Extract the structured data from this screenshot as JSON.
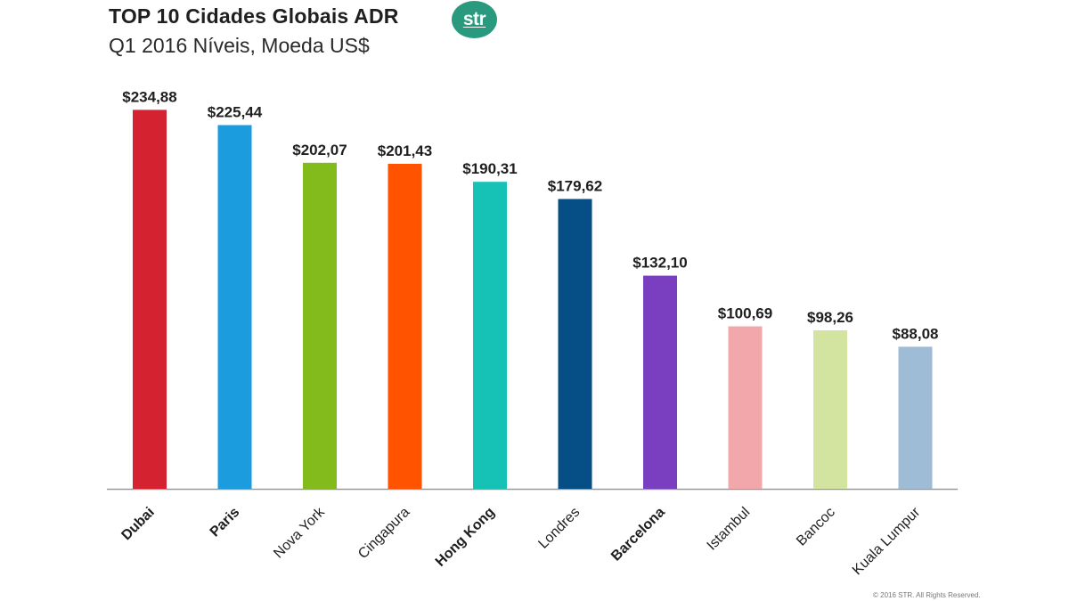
{
  "header": {
    "title": "TOP 10 Cidades Globais ADR",
    "subtitle": "Q1 2016 Níveis, Moeda US$",
    "logo_text": "str",
    "logo_color": "#2a9a7f"
  },
  "footer": {
    "copyright": "© 2016 STR. All Rights Reserved."
  },
  "chart_data": {
    "type": "bar",
    "title": "TOP 10 Cidades Globais ADR",
    "subtitle": "Q1 2016 Níveis, Moeda US$",
    "xlabel": "",
    "ylabel": "",
    "ylim": [
      0,
      250
    ],
    "grid": false,
    "legend": "none",
    "categories": [
      "Dubai",
      "Paris",
      "Nova York",
      "Cingapura",
      "Hong Kong",
      "Londres",
      "Barcelona",
      "Istambul",
      "Bancoc",
      "Kuala Lumpur"
    ],
    "values": [
      234.88,
      225.44,
      202.07,
      201.43,
      190.31,
      179.62,
      132.1,
      100.69,
      98.26,
      88.08
    ],
    "data_labels": [
      "$234,88",
      "$225,44",
      "$202,07",
      "$201,43",
      "$190,31",
      "$179,62",
      "$132,10",
      "$100,69",
      "$98,26",
      "$88,08"
    ],
    "bold_categories": [
      "Dubai",
      "Paris",
      "Hong Kong",
      "Barcelona"
    ],
    "colors": [
      "#d42230",
      "#1a9cdf",
      "#82bb1b",
      "#ff5300",
      "#16c1b5",
      "#064f86",
      "#7a3fc0",
      "#f2a8aa",
      "#d3e4a1",
      "#9fbcd6"
    ]
  }
}
